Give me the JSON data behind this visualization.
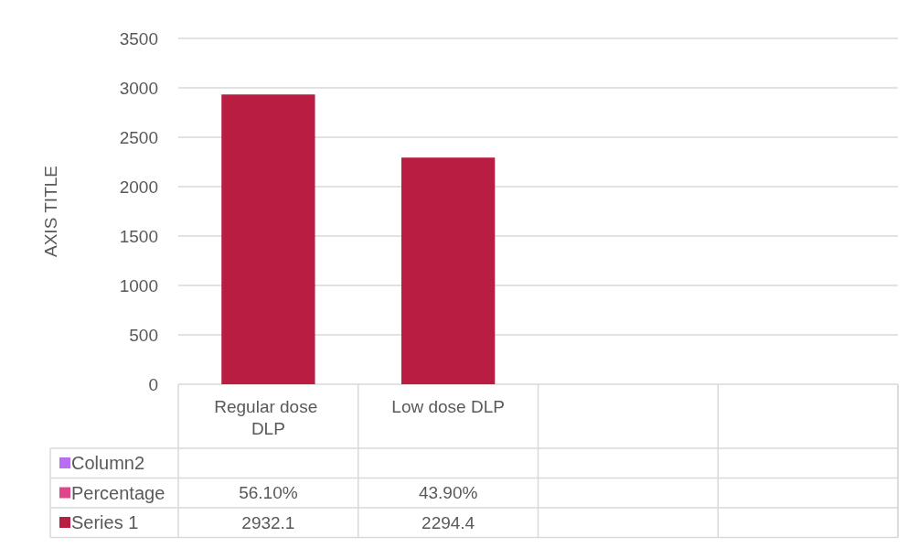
{
  "chart_data": {
    "type": "bar",
    "ylabel": "AXIS TITLE",
    "categories": [
      "Regular dose DLP",
      "Low dose DLP",
      null,
      null
    ],
    "series": [
      {
        "name": "Series 1",
        "color": "#b91e42",
        "values": [
          2932.1,
          2294.4,
          null,
          null
        ]
      },
      {
        "name": "Percentage",
        "color": "#e0468a",
        "values": [
          0.561,
          0.439,
          null,
          null
        ],
        "value_labels": [
          "56.10%",
          "43.90%",
          null,
          null
        ]
      },
      {
        "name": "Column2",
        "color": "#b86ef0",
        "values": [
          null,
          null,
          null,
          null
        ]
      }
    ],
    "ylim": [
      0,
      3500
    ],
    "yticks": [
      0,
      500,
      1000,
      1500,
      2000,
      2500,
      3000,
      3500
    ],
    "grid": "y",
    "data_labels": true,
    "legend": "bottom left"
  }
}
